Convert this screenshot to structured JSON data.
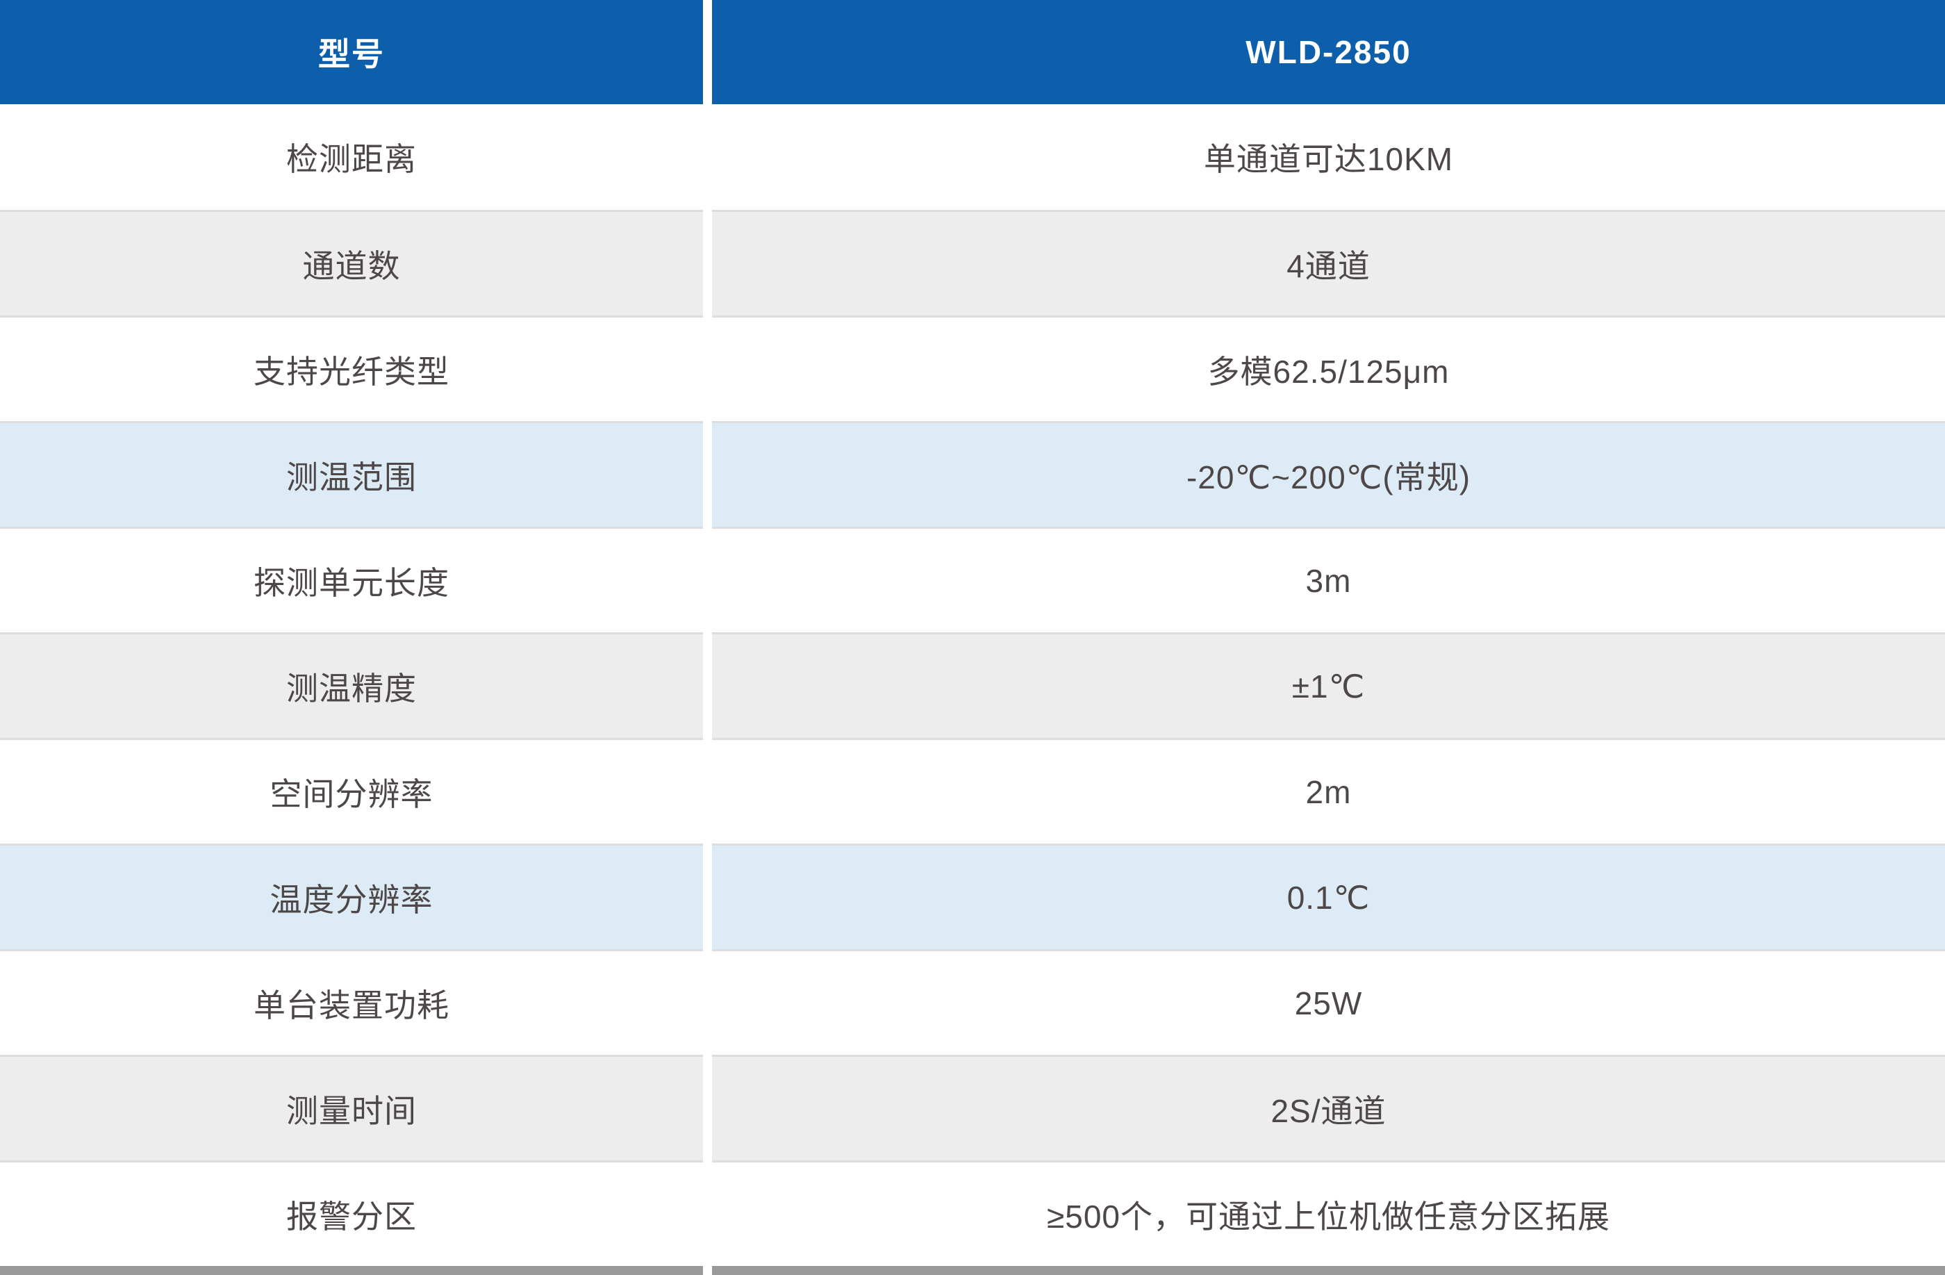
{
  "table": {
    "header": {
      "label": "型号",
      "value": "WLD-2850"
    },
    "rows": [
      {
        "label": "检测距离",
        "value": "单通道可达10KM"
      },
      {
        "label": "通道数",
        "value": "4通道"
      },
      {
        "label": "支持光纤类型",
        "value": "多模62.5/125μm"
      },
      {
        "label": "测温范围",
        "value": "-20℃~200℃(常规)"
      },
      {
        "label": "探测单元长度",
        "value": "3m"
      },
      {
        "label": "测温精度",
        "value": "±1℃"
      },
      {
        "label": "空间分辨率",
        "value": "2m"
      },
      {
        "label": "温度分辨率",
        "value": "0.1℃"
      },
      {
        "label": "单台装置功耗",
        "value": "25W"
      },
      {
        "label": "测量时间",
        "value": "2S/通道"
      },
      {
        "label": "报警分区",
        "value": "≥500个，可通过上位机做任意分区拓展"
      }
    ]
  },
  "colors": {
    "header_bg": "#0e5fab",
    "header_text": "#ffffff",
    "row_white_bg": "#ffffff",
    "row_gray_bg": "#ededed",
    "row_blue_bg": "#dcebf5",
    "separator_line": "#dcdcdc",
    "bottom_bar": "#9a9a9a",
    "body_text": "#4e4747"
  }
}
